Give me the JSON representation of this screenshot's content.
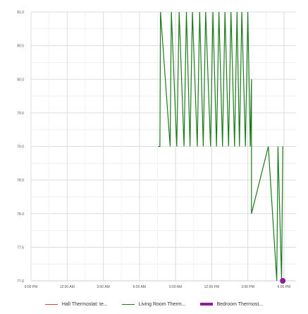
{
  "chart_data": {
    "type": "line",
    "y_ticks": [
      "81.0",
      "80.5",
      "80.0",
      "79.5",
      "79.0",
      "78.5",
      "78.0",
      "77.5",
      "77.0"
    ],
    "ylim": [
      77.0,
      81.0
    ],
    "x_ticks": [
      "9:00 PM",
      "12:00 AM",
      "3:00 AM",
      "6:00 AM",
      "9:00 AM",
      "12:00 PM",
      "3:00 PM",
      "6:00 PM"
    ],
    "grid": true,
    "legend_position": "bottom",
    "series": [
      {
        "name": "Hall Thermostat: te...",
        "color": "#e53935",
        "points": []
      },
      {
        "name": "Living Room Therm...",
        "color": "#1b7a1b",
        "points": [
          [
            10.55,
            79.0
          ],
          [
            10.7,
            79.0
          ],
          [
            10.75,
            81.0
          ],
          [
            11.55,
            79.0
          ],
          [
            11.65,
            81.0
          ],
          [
            12.1,
            79.0
          ],
          [
            12.3,
            81.0
          ],
          [
            12.7,
            79.0
          ],
          [
            12.9,
            81.0
          ],
          [
            13.2,
            79.0
          ],
          [
            13.4,
            81.0
          ],
          [
            13.8,
            79.0
          ],
          [
            14.0,
            81.0
          ],
          [
            14.3,
            79.0
          ],
          [
            14.5,
            81.0
          ],
          [
            14.9,
            79.0
          ],
          [
            15.1,
            81.0
          ],
          [
            15.4,
            79.0
          ],
          [
            15.6,
            81.0
          ],
          [
            15.9,
            79.0
          ],
          [
            16.1,
            81.0
          ],
          [
            16.4,
            79.0
          ],
          [
            16.6,
            81.0
          ],
          [
            16.9,
            79.0
          ],
          [
            17.1,
            81.0
          ],
          [
            17.3,
            79.0
          ],
          [
            17.5,
            81.0
          ],
          [
            17.8,
            79.0
          ],
          [
            18.0,
            81.0
          ],
          [
            18.2,
            79.0
          ],
          [
            18.3,
            80.0
          ],
          [
            18.3,
            78.0
          ],
          [
            19.7,
            79.0
          ],
          [
            20.4,
            77.0
          ],
          [
            20.5,
            79.0
          ],
          [
            20.8,
            77.0
          ],
          [
            20.9,
            79.0
          ]
        ]
      },
      {
        "name": "Bedroom Thermost...",
        "color": "#8e1b9a",
        "points": [
          [
            20.9,
            77.0
          ]
        ]
      }
    ]
  }
}
